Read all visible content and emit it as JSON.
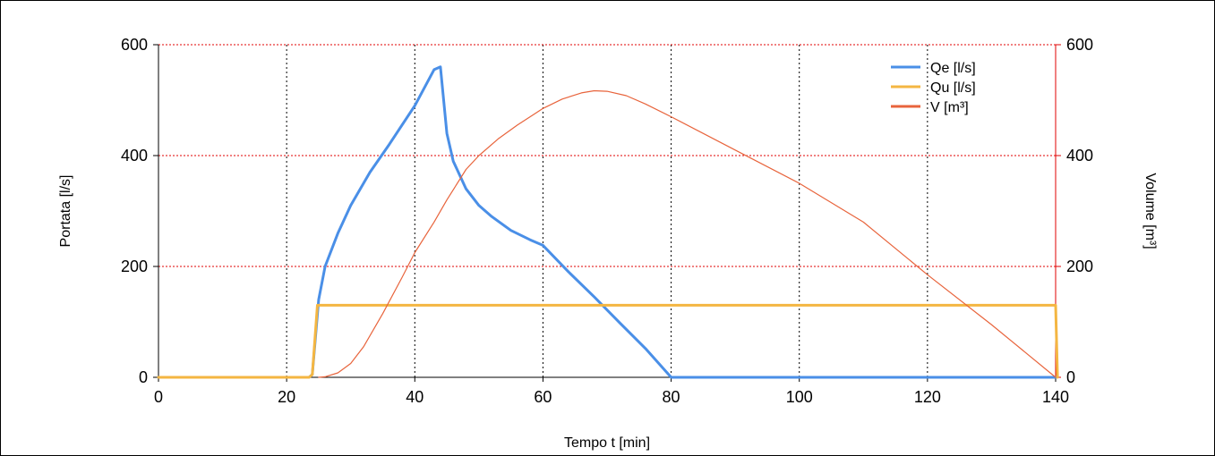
{
  "chart_data": {
    "type": "line",
    "title": "",
    "xlabel": "Tempo t [min]",
    "ylabel": "Portata [l/s]",
    "y2label": "Volume [m³]",
    "xlim": [
      0,
      140
    ],
    "ylim": [
      0,
      600
    ],
    "y2lim": [
      0,
      600
    ],
    "x_ticks": [
      0,
      20,
      40,
      60,
      80,
      100,
      120,
      140
    ],
    "y_ticks": [
      0,
      200,
      400,
      600
    ],
    "y2_ticks": [
      0,
      200,
      400,
      600
    ],
    "grid": {
      "x": "black dotted",
      "y": "red dotted"
    },
    "legend_position": "top-right",
    "series": [
      {
        "name": "Qe [l/s]",
        "axis": "left",
        "color": "#4a8fe7",
        "points": [
          [
            0,
            0
          ],
          [
            23.5,
            0
          ],
          [
            24,
            5
          ],
          [
            25,
            140
          ],
          [
            26,
            200
          ],
          [
            28,
            260
          ],
          [
            30,
            310
          ],
          [
            33,
            370
          ],
          [
            36,
            420
          ],
          [
            40,
            490
          ],
          [
            43,
            555
          ],
          [
            44,
            560
          ],
          [
            45,
            440
          ],
          [
            46,
            390
          ],
          [
            48,
            340
          ],
          [
            50,
            310
          ],
          [
            52,
            290
          ],
          [
            55,
            265
          ],
          [
            58,
            248
          ],
          [
            60,
            238
          ],
          [
            64,
            190
          ],
          [
            68,
            145
          ],
          [
            72,
            98
          ],
          [
            76,
            52
          ],
          [
            80,
            0
          ],
          [
            140,
            0
          ]
        ]
      },
      {
        "name": "Qu [l/s]",
        "axis": "left",
        "color": "#f4b642",
        "points": [
          [
            0,
            0
          ],
          [
            23.5,
            0
          ],
          [
            24,
            5
          ],
          [
            24.8,
            130
          ],
          [
            140,
            130
          ],
          [
            140.3,
            0
          ]
        ]
      },
      {
        "name": "V [m³]",
        "axis": "right",
        "color": "#e8643c",
        "points": [
          [
            25,
            0
          ],
          [
            26,
            1
          ],
          [
            28,
            8
          ],
          [
            30,
            25
          ],
          [
            32,
            55
          ],
          [
            35,
            115
          ],
          [
            38,
            180
          ],
          [
            40,
            225
          ],
          [
            43,
            280
          ],
          [
            45,
            320
          ],
          [
            48,
            375
          ],
          [
            50,
            400
          ],
          [
            53,
            430
          ],
          [
            56,
            455
          ],
          [
            60,
            485
          ],
          [
            63,
            502
          ],
          [
            66,
            513
          ],
          [
            68,
            517
          ],
          [
            70,
            516
          ],
          [
            73,
            508
          ],
          [
            76,
            493
          ],
          [
            80,
            470
          ],
          [
            90,
            410
          ],
          [
            100,
            350
          ],
          [
            110,
            280
          ],
          [
            120,
            185
          ],
          [
            130,
            95
          ],
          [
            140,
            0
          ]
        ]
      }
    ]
  }
}
